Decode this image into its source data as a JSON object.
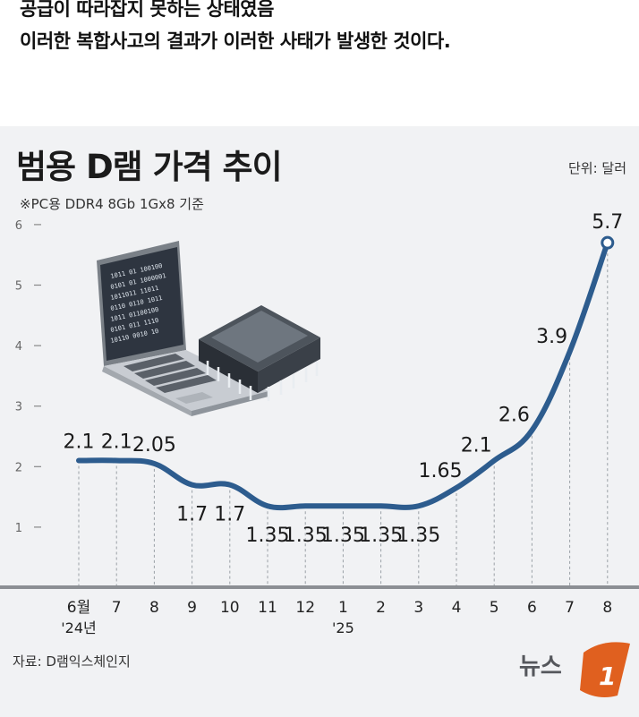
{
  "caption": {
    "line1": "공급이 따라잡지 못하는 상태였음",
    "line2": "이러한 복합사고의 결과가 이러한 사태가 발생한 것이다."
  },
  "chart_data": {
    "type": "line",
    "title": "범용 D램 가격 추이",
    "unit_label": "단위: 달러",
    "subtitle": "※PC용 DDR4 8Gb 1Gx8 기준",
    "categories": [
      "6월",
      "7",
      "8",
      "9",
      "10",
      "11",
      "12",
      "1",
      "2",
      "3",
      "4",
      "5",
      "6",
      "7",
      "8"
    ],
    "year_labels": [
      {
        "index": 0,
        "label": "'24년"
      },
      {
        "index": 7,
        "label": "'25"
      }
    ],
    "values": [
      2.1,
      2.1,
      2.05,
      1.7,
      1.7,
      1.35,
      1.35,
      1.35,
      1.35,
      1.35,
      1.65,
      2.1,
      2.6,
      3.9,
      5.7
    ],
    "data_labels": [
      "2.1",
      "2.1",
      "2.05",
      "1.7",
      "1.7",
      "1.35",
      "1.35",
      "1.35",
      "1.35",
      "1.35",
      "1.65",
      "2.1",
      "2.6",
      "3.9",
      "5.7"
    ],
    "yticks": [
      "1",
      "2",
      "3",
      "4",
      "5",
      "6"
    ],
    "ylim": [
      0,
      6
    ],
    "grid": false,
    "line_color": "#2d5c8e",
    "source": "자료: D램익스체인지",
    "logo": "뉴스1",
    "illustration": "laptop-and-memory-chip-illustration"
  }
}
